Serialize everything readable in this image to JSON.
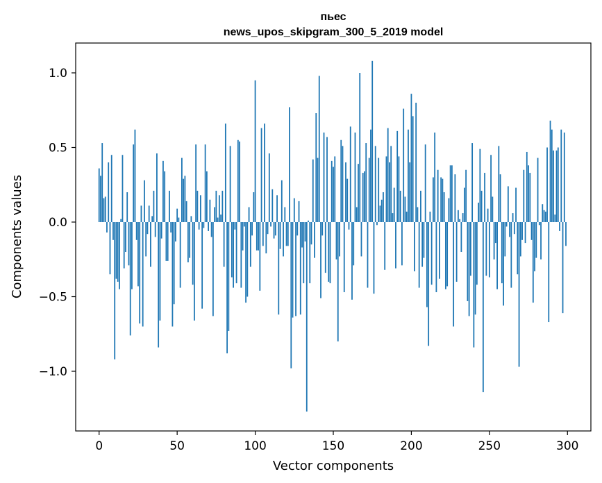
{
  "chart_data": {
    "type": "bar",
    "title": "пьес",
    "subtitle": "news_upos_skipgram_300_5_2019 model",
    "xlabel": "Vector components",
    "ylabel": "Components values",
    "xlim": [
      -15,
      315
    ],
    "ylim": [
      -1.4,
      1.2
    ],
    "xticks": [
      0,
      50,
      100,
      150,
      200,
      250,
      300
    ],
    "xtick_labels": [
      "0",
      "50",
      "100",
      "150",
      "200",
      "250",
      "300"
    ],
    "yticks": [
      -1.0,
      -0.5,
      0.0,
      0.5,
      1.0
    ],
    "ytick_labels": [
      "−1.0",
      "−0.5",
      "0.0",
      "0.5",
      "1.0"
    ],
    "bar_color": "#1f77b4",
    "grid": false,
    "n_components": 300,
    "values": [
      0.36,
      0.31,
      0.53,
      0.16,
      0.17,
      -0.07,
      0.4,
      -0.35,
      0.45,
      -0.12,
      -0.92,
      -0.38,
      -0.4,
      -0.45,
      0.02,
      0.45,
      -0.31,
      -0.2,
      0.2,
      -0.29,
      -0.76,
      -0.45,
      0.52,
      0.62,
      -0.12,
      -0.43,
      -0.68,
      0.11,
      -0.7,
      0.28,
      -0.23,
      -0.08,
      0.11,
      -0.3,
      0.04,
      0.21,
      -0.1,
      0.46,
      -0.84,
      -0.66,
      -0.11,
      0.41,
      0.34,
      -0.26,
      -0.26,
      0.21,
      -0.07,
      -0.7,
      -0.55,
      -0.13,
      0.09,
      0.03,
      -0.44,
      0.43,
      0.29,
      0.31,
      0.14,
      -0.27,
      -0.24,
      0.04,
      -0.42,
      -0.66,
      0.52,
      0.21,
      -0.05,
      0.18,
      -0.58,
      -0.04,
      0.52,
      0.34,
      -0.06,
      0.15,
      -0.1,
      -0.63,
      0.1,
      0.21,
      0.03,
      0.18,
      0.05,
      0.21,
      -0.3,
      0.66,
      -0.88,
      -0.73,
      0.51,
      -0.37,
      -0.44,
      -0.05,
      -0.41,
      0.55,
      0.54,
      -0.44,
      -0.19,
      -0.03,
      -0.54,
      -0.5,
      0.1,
      -0.3,
      -0.09,
      0.2,
      0.95,
      -0.19,
      -0.19,
      -0.46,
      0.63,
      -0.16,
      0.66,
      -0.21,
      -0.08,
      0.46,
      -0.03,
      0.22,
      -0.11,
      -0.09,
      0.18,
      -0.62,
      -0.18,
      0.28,
      -0.23,
      0.1,
      -0.16,
      -0.16,
      0.77,
      -0.98,
      -0.64,
      0.16,
      -0.63,
      -0.09,
      0.14,
      -0.62,
      -0.17,
      -0.41,
      -0.13,
      -1.27,
      0.01,
      -0.41,
      -0.15,
      0.42,
      -0.24,
      0.73,
      0.43,
      0.98,
      -0.51,
      -0.09,
      0.6,
      -0.34,
      0.57,
      -0.4,
      -0.41,
      0.41,
      0.37,
      0.44,
      -0.25,
      -0.8,
      -0.23,
      0.55,
      0.51,
      -0.47,
      0.4,
      0.29,
      -0.05,
      0.64,
      -0.52,
      -0.29,
      0.6,
      0.1,
      0.39,
      1.0,
      -0.23,
      0.33,
      0.34,
      0.53,
      -0.44,
      0.43,
      0.62,
      1.08,
      -0.48,
      0.51,
      -0.02,
      0.43,
      0.11,
      0.15,
      0.2,
      -0.32,
      0.44,
      0.63,
      0.4,
      0.51,
      0.06,
      0.23,
      -0.31,
      0.61,
      0.44,
      0.21,
      -0.29,
      0.76,
      0.17,
      0.07,
      0.62,
      0.4,
      0.86,
      0.71,
      -0.33,
      0.8,
      0.1,
      -0.44,
      0.21,
      -0.3,
      -0.24,
      0.52,
      -0.57,
      -0.83,
      0.07,
      -0.42,
      0.3,
      0.6,
      -0.47,
      0.35,
      -0.38,
      0.3,
      0.29,
      0.2,
      -0.45,
      -0.43,
      0.16,
      0.38,
      0.38,
      -0.7,
      0.32,
      -0.4,
      0.08,
      0.02,
      -0.2,
      0.06,
      0.23,
      0.35,
      -0.53,
      -0.63,
      -0.36,
      0.53,
      -0.84,
      -0.62,
      -0.42,
      0.13,
      0.49,
      0.21,
      -1.14,
      0.33,
      -0.36,
      0.09,
      -0.37,
      0.45,
      0.17,
      -0.25,
      -0.14,
      -0.45,
      0.51,
      0.32,
      -0.41,
      -0.56,
      -0.23,
      -0.03,
      0.24,
      -0.1,
      -0.44,
      0.06,
      -0.08,
      0.23,
      -0.35,
      -0.97,
      -0.23,
      -0.12,
      0.35,
      -0.14,
      0.47,
      0.38,
      0.33,
      -0.12,
      -0.54,
      -0.33,
      -0.24,
      0.43,
      -0.02,
      -0.25,
      0.12,
      0.08,
      0.07,
      0.5,
      -0.67,
      0.68,
      0.62,
      0.48,
      0.05,
      0.48,
      0.5,
      -0.06,
      0.62,
      -0.61,
      0.6,
      -0.16
    ]
  }
}
